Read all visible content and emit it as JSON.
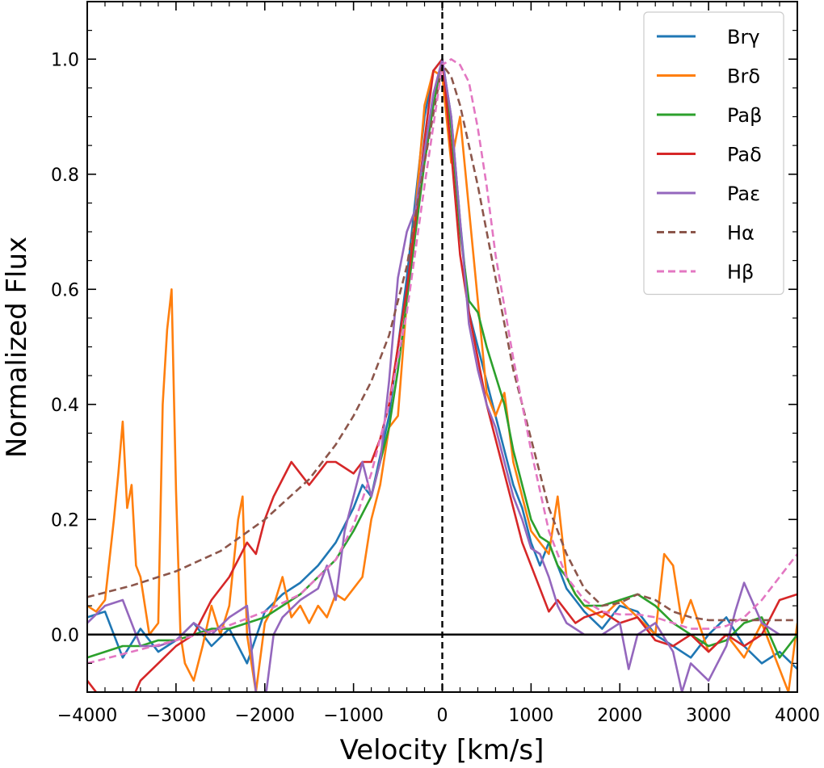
{
  "chart_data": {
    "type": "line",
    "title": "",
    "xlabel": "Velocity [km/s]",
    "ylabel": "Normalized Flux",
    "xlim": [
      -4000,
      4000
    ],
    "ylim": [
      -0.1,
      1.1
    ],
    "xticks": [
      -4000,
      -3000,
      -2000,
      -1000,
      0,
      1000,
      2000,
      3000,
      4000
    ],
    "xtick_labels": [
      "−4000",
      "−3000",
      "−2000",
      "−1000",
      "0",
      "1000",
      "2000",
      "3000",
      "4000"
    ],
    "yticks": [
      0.0,
      0.2,
      0.4,
      0.6,
      0.8,
      1.0
    ],
    "ytick_labels": [
      "0.0",
      "0.2",
      "0.4",
      "0.6",
      "0.8",
      "1.0"
    ],
    "grid": false,
    "legend_position": "top-right",
    "reference_lines": [
      {
        "type": "horizontal",
        "value": 0.0,
        "style": "solid"
      },
      {
        "type": "vertical",
        "value": 0,
        "style": "dashed"
      }
    ],
    "series": [
      {
        "name": "Brγ",
        "color": "#1f77b4",
        "dash": "solid",
        "x": [
          -4000,
          -3800,
          -3600,
          -3400,
          -3200,
          -3000,
          -2800,
          -2600,
          -2400,
          -2200,
          -2000,
          -1800,
          -1600,
          -1400,
          -1200,
          -1000,
          -900,
          -800,
          -700,
          -600,
          -500,
          -400,
          -300,
          -200,
          -100,
          0,
          100,
          200,
          300,
          400,
          500,
          600,
          700,
          800,
          900,
          1000,
          1100,
          1200,
          1300,
          1400,
          1500,
          1600,
          1800,
          2000,
          2200,
          2400,
          2600,
          2800,
          3000,
          3200,
          3400,
          3600,
          3800,
          4000
        ],
        "y": [
          0.03,
          0.04,
          -0.04,
          0.01,
          -0.03,
          -0.01,
          0.02,
          -0.02,
          0.01,
          -0.05,
          0.04,
          0.07,
          0.09,
          0.12,
          0.16,
          0.22,
          0.26,
          0.24,
          0.31,
          0.38,
          0.5,
          0.62,
          0.76,
          0.9,
          0.98,
          1.0,
          0.9,
          0.72,
          0.56,
          0.5,
          0.44,
          0.38,
          0.32,
          0.26,
          0.22,
          0.16,
          0.12,
          0.16,
          0.12,
          0.08,
          0.06,
          0.04,
          0.01,
          0.05,
          0.04,
          0.0,
          -0.02,
          -0.04,
          0.0,
          0.03,
          -0.02,
          -0.05,
          -0.03,
          -0.06
        ]
      },
      {
        "name": "Brδ",
        "color": "#ff7f0e",
        "dash": "solid",
        "x": [
          -4000,
          -3900,
          -3800,
          -3700,
          -3650,
          -3600,
          -3550,
          -3500,
          -3450,
          -3400,
          -3300,
          -3200,
          -3150,
          -3100,
          -3050,
          -3000,
          -2950,
          -2900,
          -2800,
          -2700,
          -2600,
          -2500,
          -2400,
          -2300,
          -2250,
          -2200,
          -2100,
          -2000,
          -1900,
          -1800,
          -1700,
          -1600,
          -1500,
          -1400,
          -1300,
          -1200,
          -1100,
          -1000,
          -900,
          -800,
          -700,
          -600,
          -500,
          -400,
          -300,
          -200,
          -100,
          0,
          100,
          200,
          300,
          400,
          500,
          600,
          700,
          800,
          900,
          1000,
          1100,
          1200,
          1300,
          1400,
          1500,
          1600,
          1700,
          1800,
          2000,
          2200,
          2400,
          2500,
          2600,
          2700,
          2800,
          3000,
          3200,
          3400,
          3600,
          3800,
          3900,
          4000
        ],
        "y": [
          0.05,
          0.04,
          0.06,
          0.2,
          0.28,
          0.37,
          0.22,
          0.26,
          0.12,
          0.1,
          0.0,
          0.02,
          0.4,
          0.53,
          0.6,
          0.25,
          0.0,
          -0.05,
          -0.08,
          -0.02,
          0.05,
          0.0,
          0.05,
          0.2,
          0.24,
          0.0,
          -0.1,
          0.02,
          0.05,
          0.1,
          0.03,
          0.05,
          0.02,
          0.05,
          0.03,
          0.07,
          0.06,
          0.08,
          0.1,
          0.2,
          0.26,
          0.36,
          0.38,
          0.58,
          0.74,
          0.92,
          0.98,
          0.97,
          0.82,
          0.9,
          0.74,
          0.58,
          0.42,
          0.38,
          0.42,
          0.3,
          0.24,
          0.18,
          0.16,
          0.14,
          0.24,
          0.1,
          0.07,
          0.05,
          0.04,
          0.03,
          0.06,
          0.03,
          0.0,
          0.14,
          0.12,
          0.02,
          0.06,
          -0.03,
          0.0,
          -0.04,
          0.02,
          -0.06,
          -0.1,
          0.02
        ]
      },
      {
        "name": "Paβ",
        "color": "#2ca02c",
        "dash": "solid",
        "x": [
          -4000,
          -3800,
          -3600,
          -3400,
          -3200,
          -3000,
          -2800,
          -2600,
          -2400,
          -2200,
          -2000,
          -1800,
          -1600,
          -1400,
          -1200,
          -1000,
          -900,
          -800,
          -700,
          -600,
          -500,
          -400,
          -300,
          -200,
          -100,
          0,
          100,
          200,
          300,
          400,
          500,
          600,
          700,
          800,
          900,
          1000,
          1100,
          1200,
          1300,
          1400,
          1500,
          1600,
          1800,
          2000,
          2200,
          2400,
          2600,
          2800,
          3000,
          3200,
          3400,
          3600,
          3800,
          4000
        ],
        "y": [
          -0.04,
          -0.03,
          -0.02,
          -0.02,
          -0.01,
          -0.01,
          0.0,
          0.01,
          0.01,
          0.02,
          0.03,
          0.05,
          0.07,
          0.1,
          0.13,
          0.18,
          0.21,
          0.24,
          0.3,
          0.36,
          0.46,
          0.58,
          0.7,
          0.82,
          0.92,
          1.0,
          0.88,
          0.7,
          0.58,
          0.56,
          0.5,
          0.45,
          0.4,
          0.32,
          0.26,
          0.2,
          0.17,
          0.16,
          0.12,
          0.1,
          0.07,
          0.05,
          0.05,
          0.06,
          0.07,
          0.05,
          0.02,
          0.0,
          -0.02,
          -0.01,
          0.02,
          0.03,
          -0.04,
          0.0
        ]
      },
      {
        "name": "Paδ",
        "color": "#d62728",
        "dash": "solid",
        "x": [
          -4000,
          -3800,
          -3600,
          -3400,
          -3200,
          -3000,
          -2800,
          -2600,
          -2400,
          -2200,
          -2100,
          -2000,
          -1900,
          -1800,
          -1700,
          -1600,
          -1500,
          -1400,
          -1300,
          -1200,
          -1100,
          -1000,
          -900,
          -800,
          -700,
          -600,
          -500,
          -400,
          -300,
          -200,
          -100,
          0,
          100,
          200,
          300,
          400,
          500,
          600,
          700,
          800,
          900,
          1000,
          1100,
          1200,
          1300,
          1400,
          1500,
          1600,
          1800,
          2000,
          2200,
          2400,
          2600,
          2800,
          3000,
          3200,
          3400,
          3600,
          3800,
          4000
        ],
        "y": [
          -0.08,
          -0.12,
          -0.15,
          -0.08,
          -0.05,
          -0.02,
          0.0,
          0.06,
          0.1,
          0.16,
          0.14,
          0.2,
          0.24,
          0.27,
          0.3,
          0.28,
          0.26,
          0.28,
          0.3,
          0.3,
          0.29,
          0.28,
          0.3,
          0.3,
          0.34,
          0.4,
          0.5,
          0.6,
          0.72,
          0.86,
          0.98,
          1.0,
          0.84,
          0.66,
          0.56,
          0.48,
          0.4,
          0.34,
          0.28,
          0.22,
          0.16,
          0.12,
          0.08,
          0.04,
          0.06,
          0.04,
          0.02,
          0.03,
          0.04,
          0.02,
          0.03,
          -0.01,
          -0.02,
          0.0,
          -0.03,
          0.0,
          -0.02,
          0.0,
          0.06,
          0.07
        ]
      },
      {
        "name": "Paε",
        "color": "#9467bd",
        "dash": "solid",
        "x": [
          -4000,
          -3800,
          -3600,
          -3400,
          -3200,
          -3000,
          -2800,
          -2600,
          -2400,
          -2200,
          -2100,
          -2000,
          -1900,
          -1800,
          -1600,
          -1400,
          -1300,
          -1200,
          -1100,
          -1000,
          -900,
          -800,
          -700,
          -600,
          -500,
          -400,
          -300,
          -200,
          -100,
          0,
          100,
          200,
          300,
          400,
          500,
          600,
          700,
          800,
          900,
          1000,
          1100,
          1200,
          1300,
          1400,
          1500,
          1600,
          1800,
          2000,
          2100,
          2200,
          2400,
          2600,
          2700,
          2800,
          3000,
          3200,
          3300,
          3400,
          3600,
          3800,
          4000
        ],
        "y": [
          0.02,
          0.05,
          0.06,
          -0.02,
          -0.02,
          -0.01,
          0.02,
          0.0,
          0.03,
          0.05,
          -0.1,
          -0.12,
          0.0,
          0.03,
          0.06,
          0.08,
          0.12,
          0.06,
          0.18,
          0.24,
          0.3,
          0.24,
          0.3,
          0.44,
          0.62,
          0.7,
          0.74,
          0.84,
          0.94,
          1.0,
          0.9,
          0.72,
          0.54,
          0.46,
          0.4,
          0.36,
          0.3,
          0.24,
          0.2,
          0.15,
          0.14,
          0.1,
          0.05,
          0.02,
          0.01,
          0.0,
          0.0,
          0.02,
          -0.06,
          0.0,
          0.02,
          -0.03,
          -0.1,
          -0.05,
          -0.08,
          -0.02,
          0.04,
          0.09,
          0.02,
          0.0,
          0.0
        ]
      },
      {
        "name": "Hα",
        "color": "#8c564b",
        "dash": "dashed",
        "x": [
          -4000,
          -3500,
          -3000,
          -2500,
          -2000,
          -1500,
          -1200,
          -1000,
          -800,
          -600,
          -400,
          -200,
          0,
          100,
          200,
          400,
          600,
          800,
          1000,
          1200,
          1400,
          1600,
          1800,
          2000,
          2200,
          2400,
          2600,
          2800,
          3000,
          3500,
          4000
        ],
        "y": [
          0.065,
          0.085,
          0.11,
          0.145,
          0.2,
          0.27,
          0.33,
          0.38,
          0.44,
          0.52,
          0.64,
          0.82,
          0.99,
          0.97,
          0.92,
          0.78,
          0.62,
          0.46,
          0.34,
          0.22,
          0.14,
          0.08,
          0.05,
          0.055,
          0.07,
          0.06,
          0.04,
          0.03,
          0.025,
          0.025,
          0.025
        ]
      },
      {
        "name": "Hβ",
        "color": "#e377c2",
        "dash": "dashed",
        "x": [
          -4000,
          -3500,
          -3000,
          -2500,
          -2000,
          -1600,
          -1200,
          -1000,
          -800,
          -600,
          -400,
          -200,
          0,
          100,
          200,
          300,
          400,
          500,
          600,
          800,
          1000,
          1200,
          1400,
          1600,
          1800,
          2000,
          2200,
          2400,
          2600,
          2800,
          3000,
          3200,
          3400,
          3600,
          3800,
          4000
        ],
        "y": [
          -0.05,
          -0.03,
          -0.01,
          0.01,
          0.04,
          0.07,
          0.13,
          0.19,
          0.28,
          0.4,
          0.56,
          0.78,
          0.99,
          1.0,
          0.99,
          0.96,
          0.88,
          0.78,
          0.66,
          0.48,
          0.32,
          0.18,
          0.1,
          0.06,
          0.04,
          0.035,
          0.035,
          0.03,
          0.02,
          0.01,
          0.01,
          0.015,
          0.03,
          0.06,
          0.1,
          0.14
        ]
      }
    ]
  }
}
